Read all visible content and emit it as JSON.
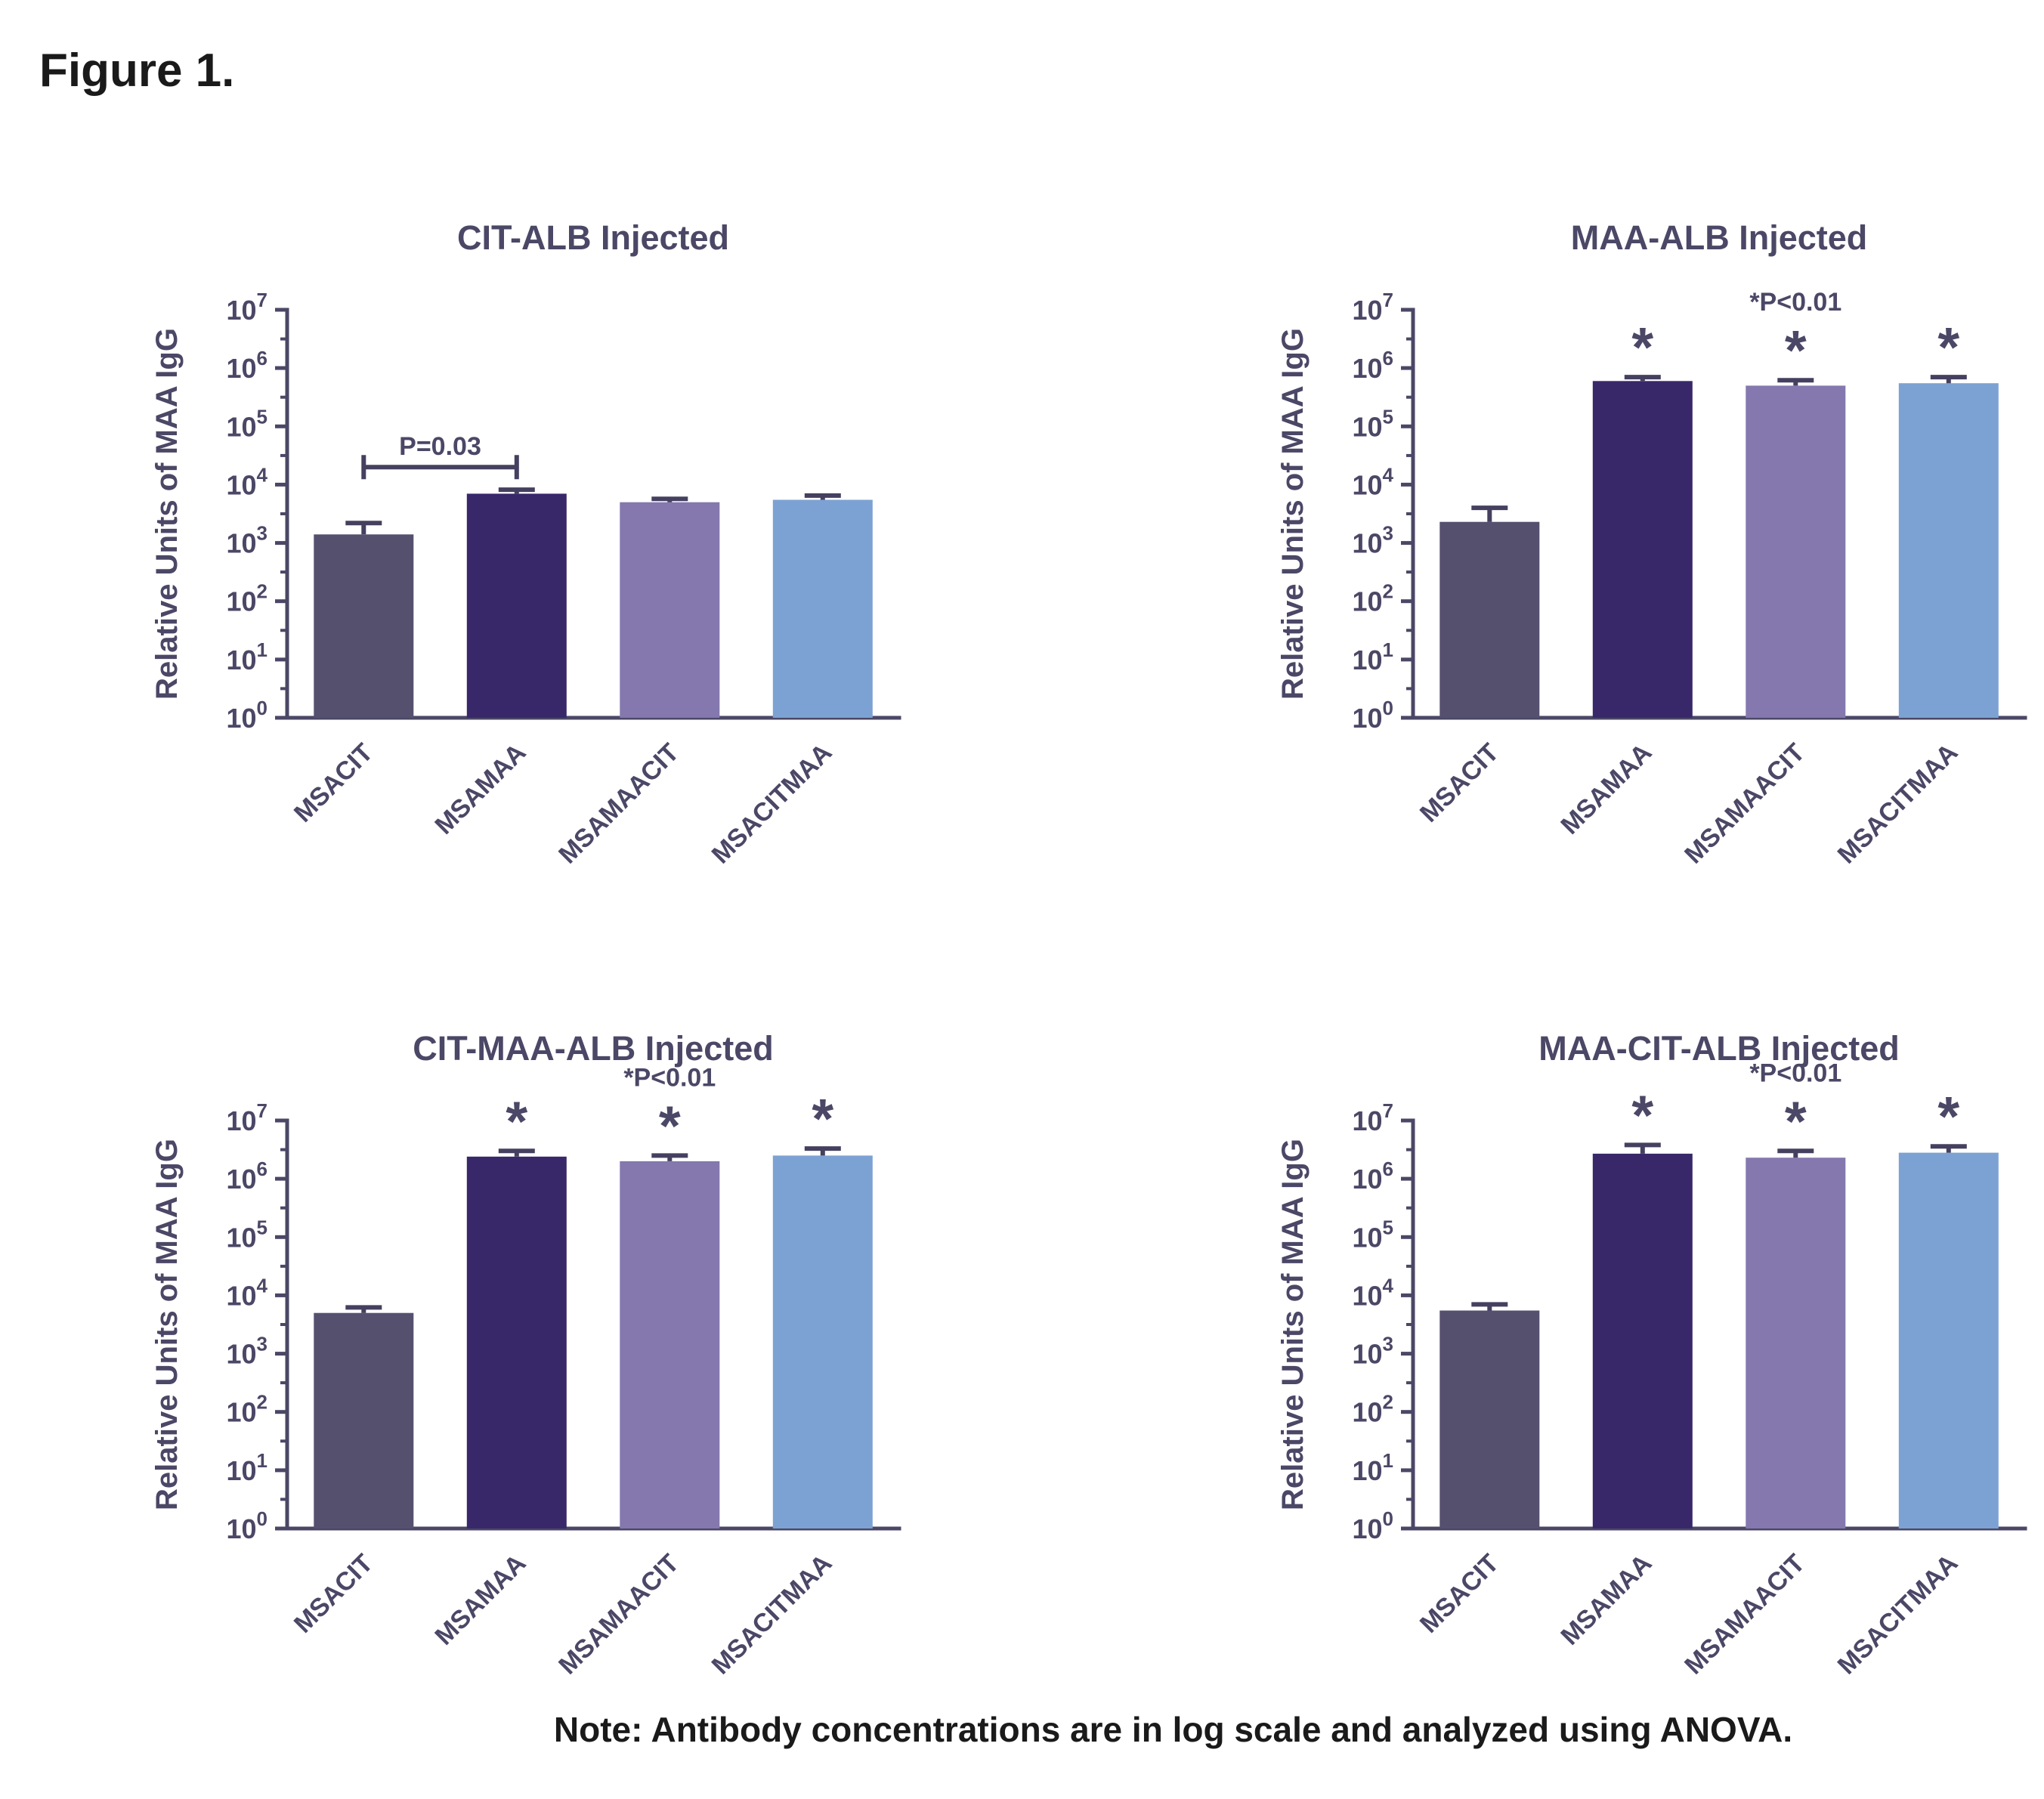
{
  "figure": {
    "title": "Figure 1.",
    "note": "Note: Antibody concentrations are in log scale and analyzed using ANOVA."
  },
  "colors": {
    "bar_palette": [
      "#56506F",
      "#38286A",
      "#8478AE",
      "#7CA2D3"
    ],
    "axis_text": "#4B4766",
    "error_bar": "#45405F",
    "figure_text": "#1A1A1A"
  },
  "chart_data": [
    {
      "type": "bar",
      "title": "CIT-ALB Injected",
      "ylabel": "Relative Units of MAA IgG",
      "yscale": "log",
      "ylim": [
        1,
        10000000
      ],
      "ytick_exponents": [
        0,
        1,
        2,
        3,
        4,
        5,
        6,
        7
      ],
      "grid": false,
      "legend": false,
      "categories": [
        "MSACIT",
        "MSAMAA",
        "MSAMAACIT",
        "MSACITMAA"
      ],
      "values": [
        1400,
        7000,
        5000,
        5500
      ],
      "error_high": [
        2200,
        8200,
        5700,
        6500
      ],
      "significant_bars": [],
      "bracket": {
        "from": 0,
        "to": 1,
        "label": "P=0.03",
        "y_value": 20000
      }
    },
    {
      "type": "bar",
      "title": "MAA-ALB Injected",
      "ylabel": "Relative Units of MAA IgG",
      "yscale": "log",
      "ylim": [
        1,
        10000000
      ],
      "ytick_exponents": [
        0,
        1,
        2,
        3,
        4,
        5,
        6,
        7
      ],
      "grid": false,
      "legend": false,
      "categories": [
        "MSACIT",
        "MSAMAA",
        "MSAMAACIT",
        "MSACITMAA"
      ],
      "values": [
        2300,
        600000,
        500000,
        550000
      ],
      "error_high": [
        4000,
        700000,
        620000,
        700000
      ],
      "significant_bars": [
        1,
        2,
        3
      ],
      "p_label": "*P<0.01",
      "p_label_bar": 2
    },
    {
      "type": "bar",
      "title": "CIT-MAA-ALB Injected",
      "ylabel": "Relative Units of MAA IgG",
      "yscale": "log",
      "ylim": [
        1,
        10000000
      ],
      "ytick_exponents": [
        0,
        1,
        2,
        3,
        4,
        5,
        6,
        7
      ],
      "grid": false,
      "legend": false,
      "categories": [
        "MSACIT",
        "MSAMAA",
        "MSAMAACIT",
        "MSACITMAA"
      ],
      "values": [
        5000,
        2400000,
        2000000,
        2500000
      ],
      "error_high": [
        6200,
        3000000,
        2500000,
        3300000
      ],
      "significant_bars": [
        1,
        2,
        3
      ],
      "p_label": "*P<0.01",
      "p_label_bar": 2
    },
    {
      "type": "bar",
      "title": "MAA-CIT-ALB Injected",
      "ylabel": "Relative Units of MAA IgG",
      "yscale": "log",
      "ylim": [
        1,
        10000000
      ],
      "ytick_exponents": [
        0,
        1,
        2,
        3,
        4,
        5,
        6,
        7
      ],
      "grid": false,
      "legend": false,
      "categories": [
        "MSACIT",
        "MSAMAA",
        "MSAMAACIT",
        "MSACITMAA"
      ],
      "values": [
        5500,
        2700000,
        2300000,
        2800000
      ],
      "error_high": [
        7000,
        3800000,
        3000000,
        3600000
      ],
      "significant_bars": [
        1,
        2,
        3
      ],
      "p_label": "*P<0.01",
      "p_label_bar": 2
    }
  ]
}
